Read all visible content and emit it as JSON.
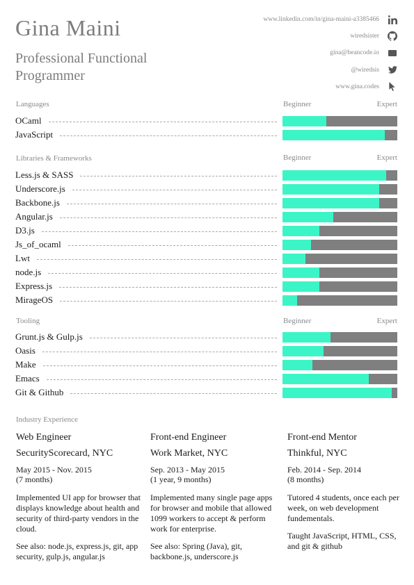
{
  "header": {
    "name": "Gina Maini",
    "subtitle": "Professional Functional Programmer"
  },
  "contact": [
    {
      "text": "www.linkedin.com/in/gina-maini-a3385466",
      "icon": "linkedin-icon"
    },
    {
      "text": "wiredsister",
      "icon": "github-icon"
    },
    {
      "text": "gina@beancode.io",
      "icon": "envelope-icon"
    },
    {
      "text": "@wiredsis",
      "icon": "twitter-icon"
    },
    {
      "text": "www.gina.codes",
      "icon": "cursor-icon"
    }
  ],
  "scale": {
    "low": "Beginner",
    "high": "Expert"
  },
  "colors": {
    "fill": "#3cf5c7",
    "track": "#7f7f7f"
  },
  "sections": [
    {
      "title": "Languages",
      "skills": [
        {
          "name": "OCaml",
          "level": 0.38
        },
        {
          "name": "JavaScript",
          "level": 0.89
        }
      ]
    },
    {
      "title": "Libraries & Frameworks",
      "skills": [
        {
          "name": "Less.js & SASS",
          "level": 0.9
        },
        {
          "name": "Underscore.js",
          "level": 0.84
        },
        {
          "name": "Backbone.js",
          "level": 0.84
        },
        {
          "name": "Angular.js",
          "level": 0.44
        },
        {
          "name": "D3.js",
          "level": 0.32
        },
        {
          "name": "Js_of_ocaml",
          "level": 0.25
        },
        {
          "name": "Lwt",
          "level": 0.2
        },
        {
          "name": "node.js",
          "level": 0.32
        },
        {
          "name": "Express.js",
          "level": 0.32
        },
        {
          "name": "MirageOS",
          "level": 0.13
        }
      ]
    },
    {
      "title": "Tooling",
      "skills": [
        {
          "name": "Grunt.js & Gulp.js",
          "level": 0.42
        },
        {
          "name": "Oasis",
          "level": 0.36
        },
        {
          "name": "Make",
          "level": 0.26
        },
        {
          "name": "Emacs",
          "level": 0.75
        },
        {
          "name": "Git & Github",
          "level": 0.95
        }
      ]
    }
  ],
  "experience": {
    "title": "Industry Experience",
    "jobs": [
      {
        "role": "Web Engineer",
        "company": "SecurityScorecard, NYC",
        "dates": "May 2015 - Nov. 2015",
        "duration": "(7 months)",
        "description": "Implemented UI app for browser that displays knowledge about health and security of third-party vendors in the cloud.",
        "extra": "See also: node.js, express.js, git, app security, gulp.js, angular.js"
      },
      {
        "role": "Front-end Engineer",
        "company": "Work Market, NYC",
        "dates": "Sep. 2013 - May 2015",
        "duration": "(1 year, 9 months)",
        "description": "Implemented many single page apps for browser and mobile that allowed 1099 workers to accept & perform work for enterprise.",
        "extra": "See also: Spring (Java), git, backbone.js, underscore.js"
      },
      {
        "role": "Front-end Mentor",
        "company": "Thinkful, NYC",
        "dates": "Feb. 2014 - Sep. 2014",
        "duration": "(8 months)",
        "description": "Tutored 4 students, once each per week, on web development fundementals.",
        "extra": "Taught JavaScript, HTML, CSS,  and git & github"
      }
    ]
  }
}
